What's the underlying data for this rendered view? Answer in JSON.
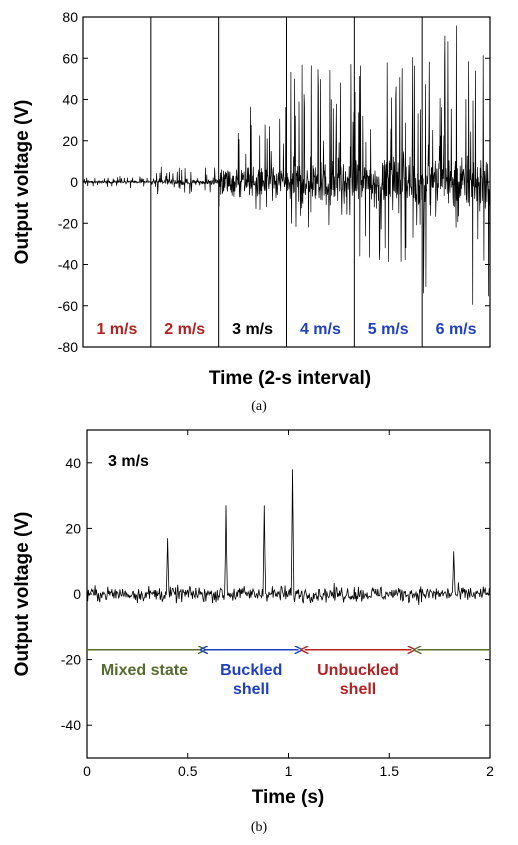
{
  "chart_data": [
    {
      "type": "line",
      "panel_caption": "(a)",
      "xlabel": "Time (2-s interval)",
      "ylabel": "Output voltage (V)",
      "ylim": [
        -80,
        80
      ],
      "yticks": [
        -80,
        -60,
        -40,
        -20,
        0,
        20,
        40,
        60,
        80
      ],
      "grid": false,
      "segments": [
        {
          "label": "1 m/s",
          "color": "#b22222",
          "amplitude_pos": 3,
          "amplitude_neg": 3
        },
        {
          "label": "2 m/s",
          "color": "#b22222",
          "amplitude_pos": 8,
          "amplitude_neg": 6
        },
        {
          "label": "3 m/s",
          "color": "#000000",
          "amplitude_pos": 38,
          "amplitude_neg": 14
        },
        {
          "label": "4 m/s",
          "color": "#1f3fbf",
          "amplitude_pos": 58,
          "amplitude_neg": 22
        },
        {
          "label": "5 m/s",
          "color": "#1f3fbf",
          "amplitude_pos": 62,
          "amplitude_neg": 40
        },
        {
          "label": "6 m/s",
          "color": "#1f3fbf",
          "amplitude_pos": 78,
          "amplitude_neg": 62
        }
      ]
    },
    {
      "type": "line",
      "panel_caption": "(b)",
      "annotation": "3 m/s",
      "xlabel": "Time (s)",
      "ylabel": "Output voltage (V)",
      "xlim": [
        0,
        2
      ],
      "ylim": [
        -50,
        50
      ],
      "xticks": [
        "0",
        "0.5",
        "1",
        "1.5",
        "2"
      ],
      "yticks": [
        -40,
        -20,
        0,
        20,
        40
      ],
      "grid": false,
      "peaks": [
        {
          "x": 0.4,
          "y": 17
        },
        {
          "x": 0.69,
          "y": 27
        },
        {
          "x": 0.88,
          "y": 27
        },
        {
          "x": 1.02,
          "y": 38
        },
        {
          "x": 1.82,
          "y": 13
        }
      ],
      "regions": [
        {
          "label": "Mixed state",
          "lines": [
            "Mixed state"
          ],
          "x_start": 0.0,
          "x_end": 0.57,
          "color": "#556b2f"
        },
        {
          "label": "Buckled shell",
          "lines": [
            "Buckled",
            "shell"
          ],
          "x_start": 0.58,
          "x_end": 1.05,
          "color": "#1f3fbf"
        },
        {
          "label": "Unbuckled shell",
          "lines": [
            "Unbuckled",
            "shell"
          ],
          "x_start": 1.08,
          "x_end": 1.61,
          "color": "#b22222"
        },
        {
          "label": "",
          "lines": [],
          "x_start": 1.64,
          "x_end": 2.0,
          "color": "#556b2f"
        }
      ],
      "arrow_y": -17
    }
  ]
}
